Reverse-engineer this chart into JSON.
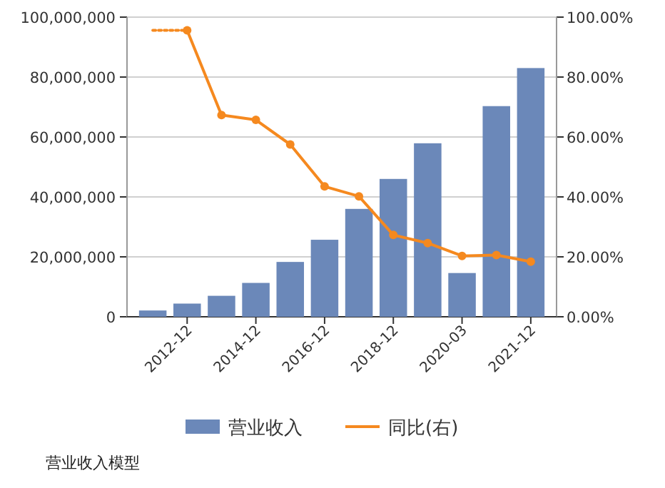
{
  "chart_data": {
    "type": "bar",
    "categories": [
      null,
      "2012-12",
      null,
      "2014-12",
      null,
      "2016-12",
      null,
      "2018-12",
      null,
      "2020-03",
      null,
      "2021-12"
    ],
    "series": [
      {
        "name": "营业收入",
        "color": "#6b88b9",
        "values": [
          2100000,
          4400000,
          7000000,
          11300000,
          18300000,
          25700000,
          36000000,
          46000000,
          57900000,
          14600000,
          70300000,
          83000000
        ]
      },
      {
        "name": "同比(右)",
        "type": "line",
        "axis": "y2",
        "color": "#f5891f",
        "marker": "circle",
        "line_style": "solid",
        "values": [
          null,
          95.6,
          67.3,
          65.7,
          57.5,
          43.5,
          40.2,
          27.3,
          24.6,
          20.3,
          20.6,
          18.4
        ]
      },
      {
        "type": "line",
        "axis": "y2",
        "color": "#f5891f",
        "marker": "none",
        "line_style": "dotted",
        "values": [
          95.6,
          95.6,
          null,
          null,
          null,
          null,
          null,
          null,
          null,
          null,
          null,
          null
        ]
      }
    ],
    "ylim": [
      0,
      100000000
    ],
    "yticks": [
      {
        "value": 0,
        "label": "0"
      },
      {
        "value": 20000000,
        "label": "20,000,000"
      },
      {
        "value": 40000000,
        "label": "40,000,000"
      },
      {
        "value": 60000000,
        "label": "60,000,000"
      },
      {
        "value": 80000000,
        "label": "80,000,000"
      },
      {
        "value": 100000000,
        "label": "100,000,000"
      }
    ],
    "y2lim": [
      0,
      100
    ],
    "y2ticks": [
      {
        "value": 0,
        "label": "0.00%"
      },
      {
        "value": 20,
        "label": "20.00%"
      },
      {
        "value": 40,
        "label": "40.00%"
      },
      {
        "value": 60,
        "label": "60.00%"
      },
      {
        "value": 80,
        "label": "80.00%"
      },
      {
        "value": 100,
        "label": "100.00%"
      }
    ],
    "grid": "y",
    "legend": "bottom",
    "annotations": [
      "营业收入模型"
    ]
  }
}
